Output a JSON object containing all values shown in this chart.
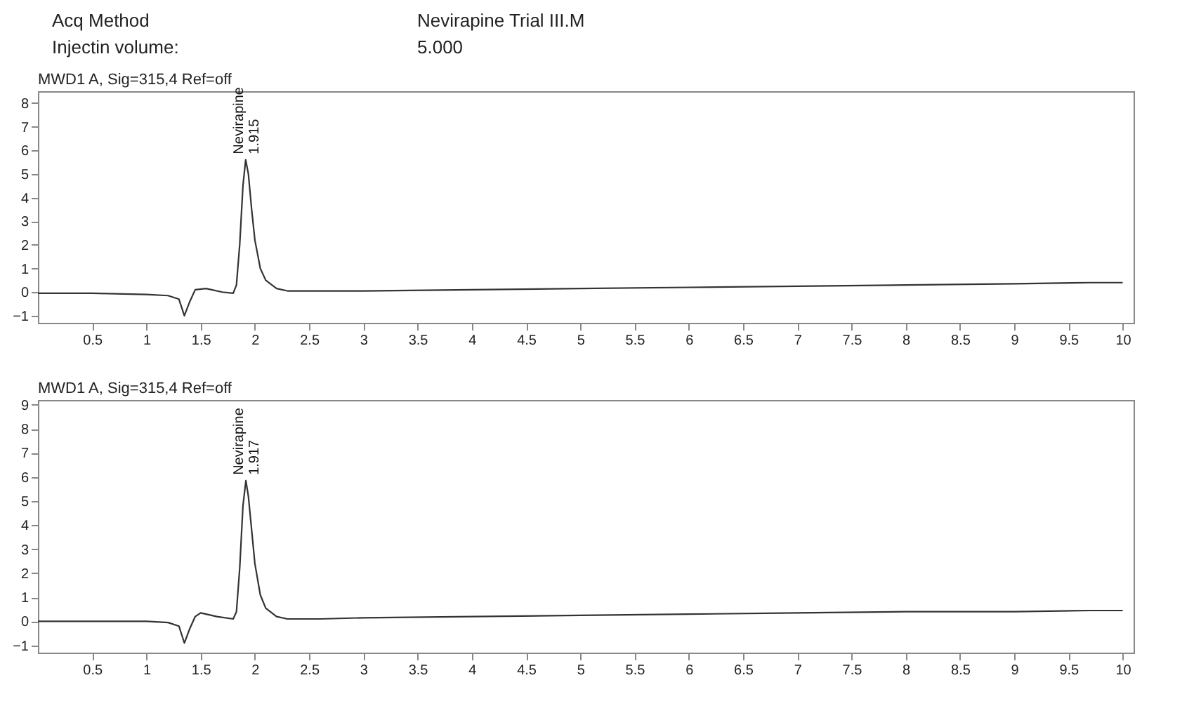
{
  "chart_data": [
    {
      "type": "line",
      "title": "MWD1 A, Sig=315,4 Ref=off",
      "annotations": [
        "Acq Method",
        "Nevirapine Trial III.M",
        "Injectin volume:",
        "5.000",
        "Nevirapine",
        "1.915"
      ],
      "series": [
        {
          "color": "#333333",
          "x": [
            0,
            0.5,
            1.0,
            1.2,
            1.3,
            1.35,
            1.4,
            1.45,
            1.55,
            1.7,
            1.8,
            1.83,
            1.86,
            1.89,
            1.915,
            1.94,
            1.97,
            2.0,
            2.05,
            2.1,
            2.2,
            2.3,
            2.6,
            3,
            4,
            5,
            6,
            7,
            8,
            9,
            9.7,
            10
          ],
          "values": [
            -0.05,
            -0.05,
            -0.1,
            -0.15,
            -0.3,
            -1.0,
            -0.4,
            0.1,
            0.15,
            0.0,
            -0.05,
            0.3,
            2.0,
            4.5,
            5.6,
            5.0,
            3.5,
            2.2,
            1.0,
            0.5,
            0.15,
            0.05,
            0.05,
            0.05,
            0.1,
            0.15,
            0.2,
            0.25,
            0.3,
            0.35,
            0.4,
            0.4
          ]
        }
      ],
      "xlim": [
        0,
        10.1
      ],
      "xticks": [
        0.5,
        1,
        1.5,
        2,
        2.5,
        3,
        3.5,
        4,
        4.5,
        5,
        5.5,
        6,
        6.5,
        7,
        7.5,
        8,
        8.5,
        9,
        9.5,
        10
      ],
      "ylim": [
        -1.3,
        8.5
      ],
      "yticks": [
        -1,
        0,
        1,
        2,
        3,
        4,
        5,
        6,
        7,
        8
      ],
      "grid": false
    },
    {
      "type": "line",
      "title": "MWD1 A, Sig=315,4 Ref=off",
      "annotations": [
        "Nevirapine",
        "1.917"
      ],
      "series": [
        {
          "color": "#333333",
          "x": [
            0,
            0.5,
            1.0,
            1.2,
            1.3,
            1.35,
            1.4,
            1.45,
            1.5,
            1.65,
            1.8,
            1.83,
            1.86,
            1.89,
            1.917,
            1.94,
            1.97,
            2.0,
            2.05,
            2.1,
            2.2,
            2.3,
            2.6,
            3,
            4,
            5,
            6,
            7,
            8,
            9,
            9.7,
            10
          ],
          "values": [
            0.0,
            0.0,
            0.0,
            -0.05,
            -0.2,
            -0.9,
            -0.3,
            0.2,
            0.35,
            0.2,
            0.1,
            0.4,
            2.2,
            4.8,
            5.85,
            5.2,
            3.8,
            2.4,
            1.1,
            0.55,
            0.2,
            0.1,
            0.1,
            0.15,
            0.2,
            0.25,
            0.3,
            0.35,
            0.4,
            0.4,
            0.45,
            0.45
          ]
        }
      ],
      "xlim": [
        0,
        10.1
      ],
      "xticks": [
        0.5,
        1,
        1.5,
        2,
        2.5,
        3,
        3.5,
        4,
        4.5,
        5,
        5.5,
        6,
        6.5,
        7,
        7.5,
        8,
        8.5,
        9,
        9.5,
        10
      ],
      "ylim": [
        -1.3,
        9.2
      ],
      "yticks": [
        -1,
        0,
        1,
        2,
        3,
        4,
        5,
        6,
        7,
        8,
        9
      ],
      "grid": false
    }
  ]
}
